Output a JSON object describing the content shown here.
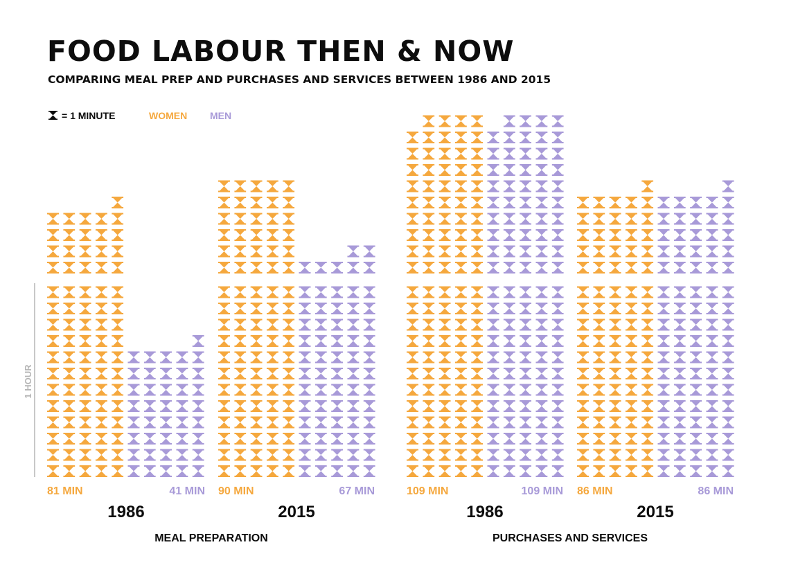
{
  "header": {
    "title": "FOOD LABOUR THEN & NOW",
    "subtitle": "COMPARING MEAL PREP AND PURCHASES AND SERVICES BETWEEN 1986 AND 2015"
  },
  "legend": {
    "unit_label": "= 1 MINUTE",
    "unit_icon": "hourglass-icon",
    "women_label": "WOMEN",
    "men_label": "MEN"
  },
  "colors": {
    "women": "#F5A83E",
    "men": "#A89AD8",
    "axis": "#b5b5b5",
    "text": "#0d0d0d"
  },
  "chart_data": {
    "type": "pictogram",
    "unit": "minutes",
    "unit_per_icon": 1,
    "axis_label": "1 HOUR",
    "series": [
      "WOMEN",
      "MEN"
    ],
    "groups": [
      {
        "category": "MEAL PREPARATION",
        "years": [
          {
            "year": "1986",
            "women": 81,
            "men": 41,
            "women_label": "81 MIN",
            "men_label": "41 MIN"
          },
          {
            "year": "2015",
            "women": 90,
            "men": 67,
            "women_label": "90 MIN",
            "men_label": "67 MIN"
          }
        ]
      },
      {
        "category": "PURCHASES AND SERVICES",
        "years": [
          {
            "year": "1986",
            "women": 109,
            "men": 109,
            "women_label": "109 MIN",
            "men_label": "109 MIN"
          },
          {
            "year": "2015",
            "women": 86,
            "men": 86,
            "women_label": "86 MIN",
            "men_label": "86 MIN"
          }
        ]
      }
    ]
  }
}
